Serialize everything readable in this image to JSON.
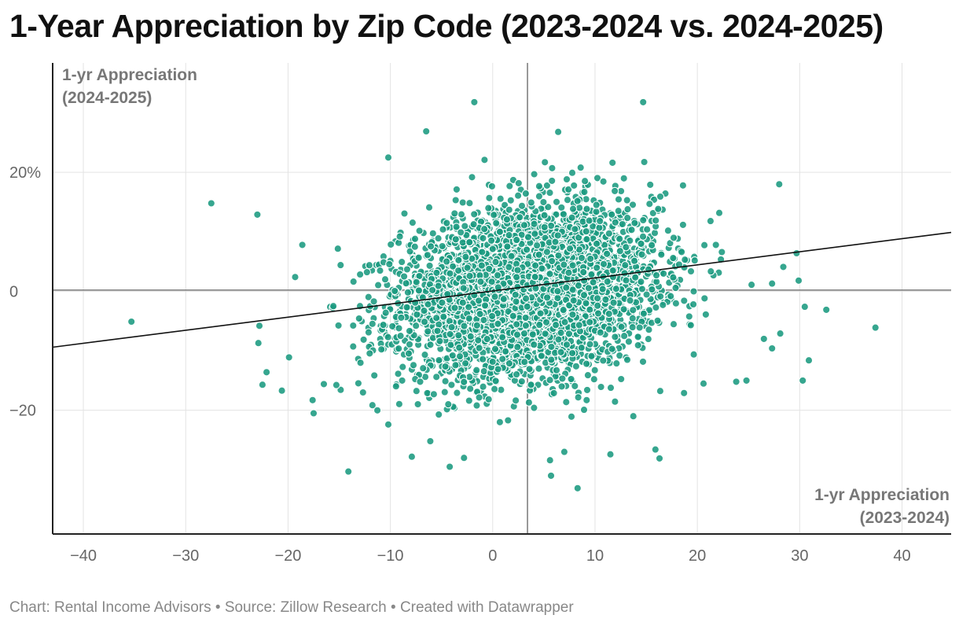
{
  "chart_data": {
    "type": "scatter",
    "title": "1-Year Appreciation by Zip Code (2023-2024 vs. 2024-2025)",
    "xlabel": [
      "1-yr Appreciation",
      "(2023-2024)"
    ],
    "ylabel": [
      "1-yr Appreciation",
      "(2024-2025)"
    ],
    "xlim": [
      -43,
      44.8
    ],
    "ylim": [
      -40.8,
      38.4
    ],
    "x_ticks": [
      -40,
      -30,
      -20,
      -10,
      0,
      10,
      20,
      30,
      40
    ],
    "x_tick_labels": [
      "−40",
      "−30",
      "−20",
      "−10",
      "0",
      "10",
      "20",
      "30",
      "40"
    ],
    "y_ticks": [
      20,
      0,
      -20
    ],
    "y_tick_labels": [
      "20%",
      "0",
      "−20"
    ],
    "reference_lines": {
      "x": 3.4,
      "y": 0.2
    },
    "trendline": {
      "x1": -43,
      "y1": -9.4,
      "x2": 44.8,
      "y2": 9.9
    },
    "grid": true,
    "series": [
      {
        "name": "Zip codes",
        "color": "#1a9a7f",
        "outlier_points": [
          [
            -35.3,
            -5.1
          ],
          [
            -27.5,
            14.8
          ],
          [
            -23.0,
            12.9
          ],
          [
            -22.8,
            -5.8
          ],
          [
            -22.9,
            -8.7
          ],
          [
            -22.5,
            -15.7
          ],
          [
            -22.1,
            -13.6
          ],
          [
            -20.6,
            -16.7
          ],
          [
            -19.9,
            -11.1
          ],
          [
            -19.3,
            2.4
          ],
          [
            -18.6,
            7.8
          ],
          [
            -17.6,
            -18.3
          ],
          [
            -17.5,
            -20.5
          ],
          [
            -16.5,
            -15.6
          ],
          [
            -14.1,
            -30.3
          ],
          [
            -10.2,
            22.5
          ],
          [
            -10.2,
            -22.4
          ],
          [
            -7.9,
            -27.8
          ],
          [
            -6.5,
            26.9
          ],
          [
            -6.1,
            -25.2
          ],
          [
            -4.2,
            -29.5
          ],
          [
            -2.8,
            -28.0
          ],
          [
            -1.8,
            31.8
          ],
          [
            -0.8,
            22.1
          ],
          [
            0.7,
            -22.0
          ],
          [
            1.5,
            -21.7
          ],
          [
            5.1,
            21.7
          ],
          [
            5.6,
            -28.4
          ],
          [
            5.7,
            -31.0
          ],
          [
            6.4,
            26.8
          ],
          [
            7.0,
            -27.0
          ],
          [
            8.3,
            -33.1
          ],
          [
            8.6,
            20.8
          ],
          [
            11.5,
            -27.4
          ],
          [
            14.7,
            31.8
          ],
          [
            15.9,
            -26.6
          ],
          [
            16.3,
            -28.1
          ],
          [
            18.6,
            17.8
          ],
          [
            28.0,
            18.0
          ],
          [
            29.7,
            6.4
          ],
          [
            29.9,
            1.8
          ],
          [
            30.3,
            -15.0
          ],
          [
            30.5,
            -2.6
          ],
          [
            30.9,
            -11.6
          ],
          [
            32.6,
            -3.1
          ],
          [
            37.4,
            -6.1
          ],
          [
            24.8,
            -15.0
          ],
          [
            23.8,
            -15.2
          ],
          [
            27.3,
            -9.6
          ],
          [
            26.5,
            -8.0
          ],
          [
            18.7,
            -17.1
          ],
          [
            20.6,
            -15.5
          ],
          [
            25.3,
            1.1
          ],
          [
            27.3,
            1.3
          ],
          [
            28.4,
            4.1
          ],
          [
            28.1,
            -7.1
          ]
        ],
        "cluster": {
          "count": 4200,
          "center_x": 3.5,
          "center_y": 0.0,
          "spread_x": 6.2,
          "spread_y": 6.8,
          "correlation_slope": 0.22
        }
      }
    ],
    "footer": "Chart: Rental Income Advisors • Source: Zillow Research • Created with Datawrapper"
  }
}
